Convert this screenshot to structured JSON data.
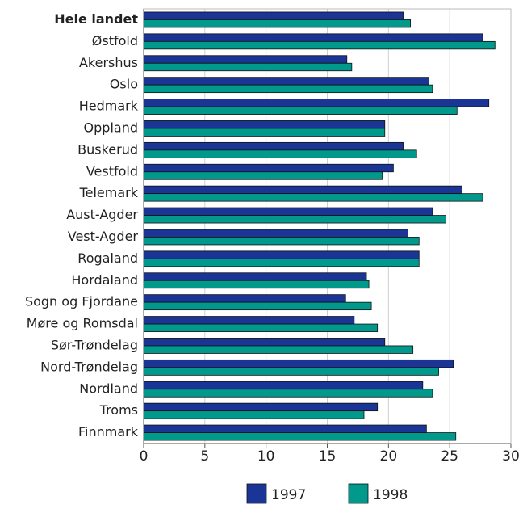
{
  "chart_data": {
    "type": "hbar",
    "categories": [
      "Hele landet",
      "Østfold",
      "Akershus",
      "Oslo",
      "Hedmark",
      "Oppland",
      "Buskerud",
      "Vestfold",
      "Telemark",
      "Aust-Agder",
      "Vest-Agder",
      "Rogaland",
      "Hordaland",
      "Sogn og Fjordane",
      "Møre og Romsdal",
      "Sør-Trøndelag",
      "Nord-Trøndelag",
      "Nordland",
      "Troms",
      "Finnmark"
    ],
    "series": [
      {
        "name": "1997",
        "color": "#1a3596",
        "values": [
          21.2,
          27.7,
          16.6,
          23.3,
          28.2,
          19.7,
          21.2,
          20.4,
          26.0,
          23.6,
          21.6,
          22.5,
          18.2,
          16.5,
          17.2,
          19.7,
          25.3,
          22.8,
          19.1,
          23.1
        ]
      },
      {
        "name": "1998",
        "color": "#00998c",
        "values": [
          21.8,
          28.7,
          17.0,
          23.6,
          25.6,
          19.7,
          22.3,
          19.5,
          27.7,
          24.7,
          22.5,
          22.5,
          18.4,
          18.6,
          19.1,
          22.0,
          24.1,
          23.6,
          18.0,
          25.5
        ]
      }
    ],
    "xlim": [
      0,
      30
    ],
    "xticks": [
      0,
      5,
      10,
      15,
      20,
      25,
      30
    ],
    "grid": true,
    "legend": "bottom"
  }
}
